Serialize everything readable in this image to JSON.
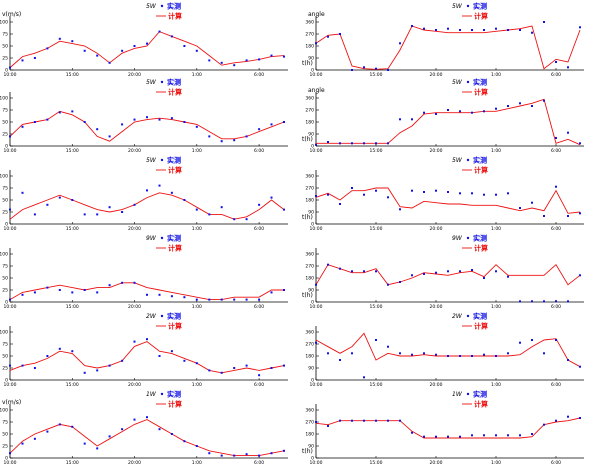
{
  "colors": {
    "observed": "#1010e8",
    "computed": "#ee1111",
    "axis": "#000000"
  },
  "legend": {
    "observed_label": "实测",
    "computed_label": "计算"
  },
  "chart_data": [
    {
      "type": "line",
      "station": "5W",
      "ylabel": "v(m/s)",
      "xlabel": "",
      "yticks": [
        "0",
        "25",
        "50",
        "75",
        "100"
      ],
      "xticks": [
        "10:00",
        "15:00",
        "20:00",
        "1:00",
        "6:00"
      ],
      "ylim": [
        0,
        100
      ],
      "series": [
        {
          "name": "实测",
          "marker": "point",
          "values": [
            5,
            20,
            25,
            45,
            65,
            60,
            40,
            30,
            15,
            40,
            50,
            55,
            80,
            70,
            50,
            40,
            20,
            15,
            10,
            20,
            22,
            30,
            28
          ]
        },
        {
          "name": "计算",
          "line": true,
          "values": [
            5,
            28,
            35,
            45,
            60,
            55,
            50,
            35,
            15,
            35,
            45,
            50,
            80,
            70,
            60,
            50,
            30,
            10,
            15,
            18,
            22,
            28,
            30
          ]
        }
      ]
    },
    {
      "type": "line",
      "station": "5W",
      "ylabel": "angle",
      "xlabel": "t(h)",
      "yticks": [
        "0",
        "90",
        "180",
        "270",
        "360"
      ],
      "xticks": [
        "10:00",
        "15:00",
        "20:00",
        "1:00",
        "6:00"
      ],
      "ylim": [
        0,
        360
      ],
      "series": [
        {
          "name": "实测",
          "marker": "point",
          "values": [
            200,
            250,
            270,
            0,
            20,
            10,
            0,
            200,
            330,
            310,
            300,
            310,
            300,
            300,
            300,
            310,
            300,
            300,
            280,
            380,
            60,
            20,
            320
          ]
        },
        {
          "name": "计算",
          "line": true,
          "values": [
            200,
            260,
            270,
            30,
            10,
            5,
            10,
            150,
            330,
            300,
            290,
            280,
            280,
            280,
            280,
            290,
            300,
            310,
            330,
            10,
            80,
            60,
            300
          ]
        }
      ]
    },
    {
      "type": "line",
      "station": "5W",
      "ylabel": "",
      "xlabel": "",
      "yticks": [
        "0",
        "25",
        "50",
        "75",
        "100"
      ],
      "xticks": [
        "10:00",
        "15:00",
        "20:00",
        "1:00",
        "6:00"
      ],
      "ylim": [
        0,
        100
      ],
      "series": [
        {
          "name": "实测",
          "marker": "point",
          "values": [
            20,
            40,
            50,
            55,
            70,
            72,
            50,
            35,
            20,
            45,
            55,
            60,
            55,
            58,
            50,
            40,
            20,
            10,
            12,
            20,
            35,
            45,
            50
          ]
        },
        {
          "name": "计算",
          "line": true,
          "values": [
            20,
            45,
            50,
            55,
            72,
            65,
            50,
            20,
            10,
            30,
            50,
            55,
            58,
            55,
            50,
            45,
            30,
            15,
            15,
            20,
            30,
            40,
            50
          ]
        }
      ]
    },
    {
      "type": "line",
      "station": "5W",
      "ylabel": "angle",
      "xlabel": "t(h)",
      "yticks": [
        "0",
        "90",
        "180",
        "270",
        "360"
      ],
      "xticks": [
        "10:00",
        "15:00",
        "20:00",
        "1:00",
        "6:00"
      ],
      "ylim": [
        0,
        360
      ],
      "series": [
        {
          "name": "实测",
          "marker": "point",
          "values": [
            10,
            30,
            20,
            20,
            20,
            20,
            20,
            200,
            200,
            250,
            240,
            270,
            260,
            250,
            260,
            280,
            300,
            320,
            300,
            340,
            60,
            100,
            20
          ]
        },
        {
          "name": "计算",
          "line": true,
          "values": [
            20,
            20,
            20,
            20,
            20,
            20,
            20,
            100,
            150,
            240,
            250,
            250,
            250,
            250,
            260,
            260,
            280,
            300,
            320,
            350,
            20,
            50,
            10
          ]
        }
      ]
    },
    {
      "type": "line",
      "station": "5W",
      "ylabel": "",
      "xlabel": "",
      "yticks": [
        "0",
        "25",
        "50",
        "75",
        "100"
      ],
      "xticks": [
        "10:00",
        "15:00",
        "20:00",
        "1:00",
        "6:00"
      ],
      "ylim": [
        0,
        100
      ],
      "series": [
        {
          "name": "实测",
          "marker": "point",
          "values": [
            30,
            65,
            20,
            40,
            55,
            50,
            20,
            20,
            35,
            25,
            40,
            70,
            80,
            65,
            50,
            30,
            20,
            35,
            10,
            10,
            40,
            55,
            30
          ]
        },
        {
          "name": "计算",
          "line": true,
          "values": [
            10,
            30,
            40,
            50,
            60,
            50,
            40,
            30,
            25,
            30,
            40,
            55,
            65,
            60,
            50,
            35,
            20,
            20,
            10,
            15,
            30,
            50,
            30
          ]
        }
      ]
    },
    {
      "type": "line",
      "station": "5W",
      "ylabel": "",
      "xlabel": "t(h)",
      "yticks": [
        "0",
        "90",
        "180",
        "270",
        "360"
      ],
      "xticks": [
        "10:00",
        "15:00",
        "20:00",
        "1:00",
        "6:00"
      ],
      "ylim": [
        0,
        360
      ],
      "series": [
        {
          "name": "实测",
          "marker": "point",
          "values": [
            210,
            220,
            150,
            270,
            220,
            250,
            200,
            110,
            250,
            240,
            250,
            240,
            230,
            230,
            220,
            220,
            230,
            120,
            160,
            60,
            280,
            60,
            80
          ]
        },
        {
          "name": "计算",
          "line": true,
          "values": [
            200,
            230,
            180,
            250,
            250,
            270,
            270,
            130,
            120,
            170,
            160,
            150,
            150,
            140,
            140,
            140,
            120,
            100,
            120,
            100,
            250,
            80,
            90
          ]
        }
      ]
    },
    {
      "type": "line",
      "station": "9W",
      "ylabel": "",
      "xlabel": "",
      "yticks": [
        "0",
        "25",
        "50",
        "75",
        "100"
      ],
      "xticks": [
        "10:00",
        "15:00",
        "20:00",
        "1:00",
        "6:00"
      ],
      "ylim": [
        0,
        100
      ],
      "series": [
        {
          "name": "实测",
          "marker": "point",
          "values": [
            5,
            15,
            20,
            30,
            25,
            20,
            25,
            20,
            35,
            40,
            40,
            15,
            15,
            12,
            10,
            5,
            5,
            5,
            5,
            5,
            5,
            20,
            25
          ]
        },
        {
          "name": "计算",
          "line": true,
          "values": [
            5,
            20,
            25,
            30,
            35,
            30,
            25,
            30,
            30,
            40,
            40,
            30,
            25,
            20,
            15,
            10,
            5,
            5,
            10,
            10,
            10,
            25,
            25
          ]
        }
      ]
    },
    {
      "type": "line",
      "station": "9W",
      "ylabel": "",
      "xlabel": "t(h)",
      "yticks": [
        "0",
        "90",
        "180",
        "270",
        "360"
      ],
      "xticks": [
        "10:00",
        "15:00",
        "20:00",
        "1:00",
        "6:00"
      ],
      "ylim": [
        0,
        360
      ],
      "series": [
        {
          "name": "实测",
          "marker": "point",
          "values": [
            130,
            280,
            250,
            230,
            230,
            230,
            130,
            150,
            200,
            210,
            220,
            230,
            230,
            240,
            180,
            230,
            190,
            5,
            5,
            5,
            5,
            5,
            200
          ]
        },
        {
          "name": "计算",
          "line": true,
          "values": [
            130,
            280,
            250,
            220,
            220,
            250,
            130,
            150,
            180,
            220,
            210,
            200,
            220,
            230,
            190,
            280,
            200,
            200,
            200,
            200,
            280,
            130,
            200
          ]
        }
      ]
    },
    {
      "type": "line",
      "station": "2W",
      "ylabel": "",
      "xlabel": "",
      "yticks": [
        "0",
        "25",
        "50",
        "75",
        "100"
      ],
      "xticks": [
        "10:00",
        "15:00",
        "20:00",
        "1:00",
        "6:00"
      ],
      "ylim": [
        0,
        100
      ],
      "series": [
        {
          "name": "实测",
          "marker": "point",
          "values": [
            30,
            30,
            25,
            50,
            65,
            60,
            15,
            20,
            30,
            40,
            80,
            85,
            50,
            60,
            40,
            35,
            20,
            15,
            25,
            30,
            10,
            25,
            30
          ]
        },
        {
          "name": "计算",
          "line": true,
          "values": [
            20,
            30,
            35,
            45,
            60,
            55,
            30,
            25,
            30,
            40,
            70,
            80,
            60,
            55,
            45,
            35,
            20,
            15,
            20,
            25,
            20,
            25,
            30
          ]
        }
      ]
    },
    {
      "type": "line",
      "station": "2W",
      "ylabel": "",
      "xlabel": "",
      "yticks": [
        "0",
        "90",
        "180",
        "270",
        "360"
      ],
      "xticks": [
        "10:00",
        "15:00",
        "20:00",
        "1:00",
        "6:00"
      ],
      "ylim": [
        0,
        360
      ],
      "series": [
        {
          "name": "实测",
          "marker": "point",
          "values": [
            280,
            200,
            150,
            200,
            20,
            300,
            250,
            200,
            190,
            200,
            190,
            180,
            180,
            180,
            190,
            180,
            200,
            280,
            300,
            200,
            300,
            150,
            100
          ]
        },
        {
          "name": "计算",
          "line": true,
          "values": [
            300,
            250,
            200,
            250,
            350,
            150,
            200,
            180,
            180,
            190,
            180,
            180,
            180,
            180,
            180,
            180,
            180,
            190,
            250,
            300,
            310,
            150,
            100
          ]
        }
      ]
    },
    {
      "type": "line",
      "station": "1W",
      "ylabel": "v(m/s)",
      "xlabel": "",
      "yticks": [
        "0",
        "25",
        "50",
        "75",
        "100"
      ],
      "xticks": [
        "10:00",
        "15:00",
        "20:00",
        "1:00",
        "6:00"
      ],
      "ylim": [
        0,
        100
      ],
      "series": [
        {
          "name": "实测",
          "marker": "point",
          "values": [
            10,
            30,
            40,
            55,
            70,
            65,
            30,
            20,
            45,
            60,
            80,
            85,
            60,
            50,
            35,
            25,
            10,
            5,
            5,
            8,
            5,
            10,
            15
          ]
        },
        {
          "name": "计算",
          "line": true,
          "values": [
            10,
            35,
            50,
            60,
            70,
            65,
            45,
            25,
            40,
            55,
            70,
            80,
            65,
            50,
            35,
            25,
            15,
            10,
            5,
            5,
            5,
            10,
            15
          ]
        }
      ]
    },
    {
      "type": "line",
      "station": "1W",
      "ylabel": "",
      "xlabel": "t(h)",
      "yticks": [
        "0",
        "90",
        "180",
        "270",
        "360"
      ],
      "xticks": [
        "10:00",
        "15:00",
        "20:00",
        "1:00",
        "6:00"
      ],
      "ylim": [
        0,
        360
      ],
      "series": [
        {
          "name": "实测",
          "marker": "point",
          "values": [
            270,
            240,
            280,
            280,
            280,
            280,
            280,
            280,
            190,
            160,
            160,
            160,
            160,
            170,
            170,
            170,
            170,
            170,
            180,
            250,
            280,
            310,
            300
          ]
        },
        {
          "name": "计算",
          "line": true,
          "values": [
            260,
            250,
            280,
            280,
            280,
            280,
            280,
            280,
            200,
            150,
            150,
            150,
            150,
            150,
            150,
            150,
            150,
            150,
            160,
            250,
            270,
            280,
            300
          ]
        }
      ]
    }
  ]
}
